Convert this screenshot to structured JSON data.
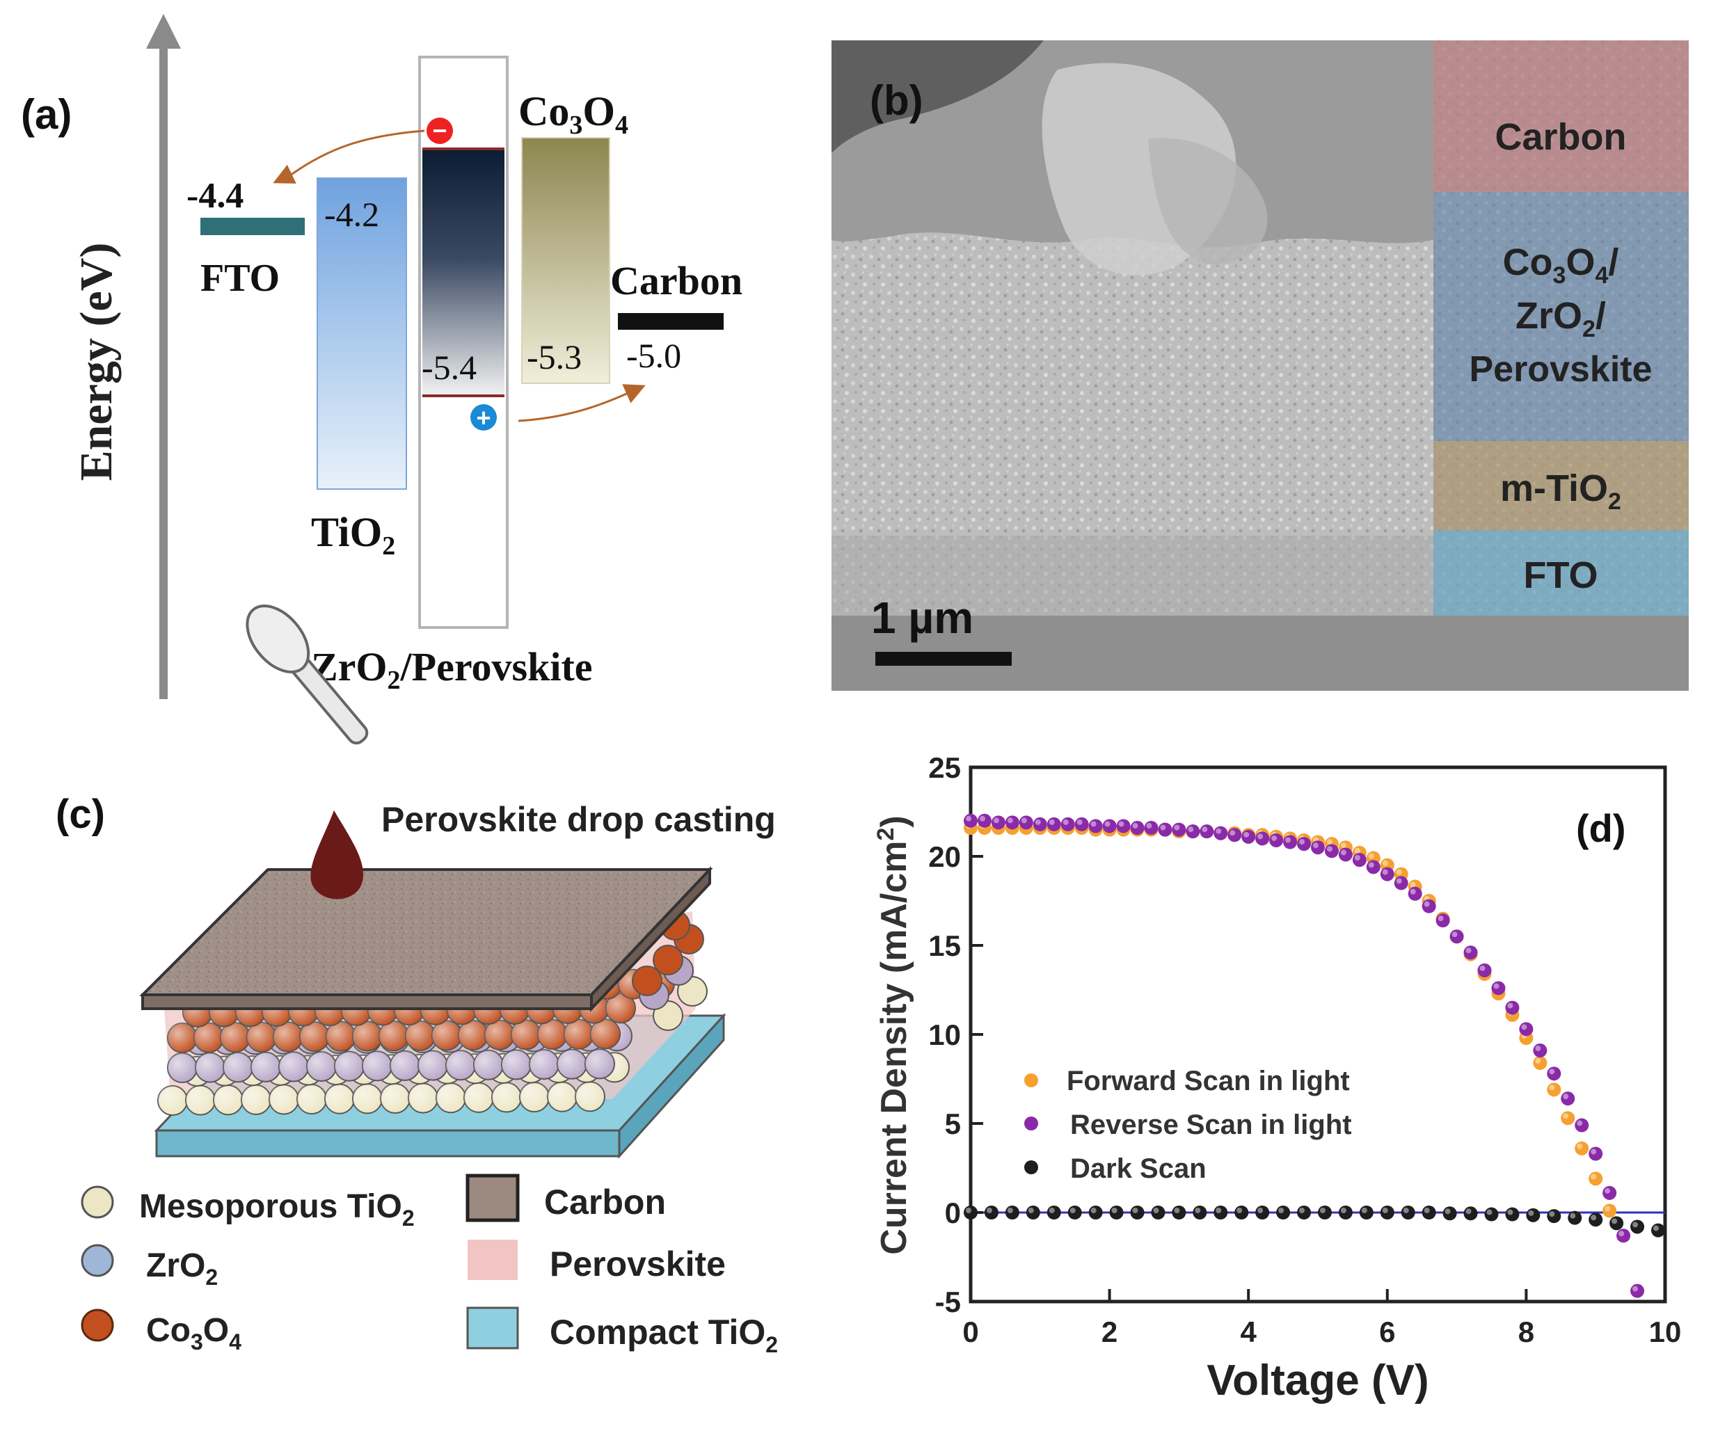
{
  "panel_a": {
    "label": "(a)",
    "axis_label": "Energy (eV)",
    "fto": {
      "name": "FTO",
      "level": "-4.4",
      "color": "#2e6f78"
    },
    "tio2": {
      "name": "TiO",
      "sub": "2",
      "level": "-4.2"
    },
    "zro2_perovskite": {
      "name_pre": "ZrO",
      "sub": "2",
      "name_post": "/Perovskite",
      "level": "-5.4"
    },
    "co3o4": {
      "name_pre": "Co",
      "sub1": "3",
      "mid": "O",
      "sub2": "4",
      "level": "-5.3"
    },
    "carbon": {
      "name": "Carbon",
      "level": "-5.0"
    },
    "electron_symbol": "−",
    "hole_symbol": "+"
  },
  "panel_b": {
    "label": "(b)",
    "scale_bar": "1 µm",
    "layers": [
      {
        "lines": [
          "Carbon"
        ],
        "color": "#b77c80"
      },
      {
        "lines": [
          "Co3O4/",
          "ZrO2/",
          "Perovskite"
        ],
        "color": "#5b7fa8"
      },
      {
        "lines": [
          "m-TiO2"
        ],
        "color": "#a8936a"
      },
      {
        "lines": [
          "FTO"
        ],
        "color": "#6aa5c0"
      }
    ],
    "layer_text": {
      "carbon": "Carbon",
      "co3o4_pre": "Co",
      "co3o4_sub1": "3",
      "co3o4_mid": "O",
      "co3o4_sub2": "4",
      "co3o4_post": "/",
      "zro2_pre": "ZrO",
      "zro2_sub": "2",
      "zro2_post": "/",
      "perovskite": "Perovskite",
      "mtio2_pre": "m-TiO",
      "mtio2_sub": "2",
      "fto": "FTO"
    }
  },
  "panel_c": {
    "label": "(c)",
    "drop_casting": "Perovskite drop casting",
    "legend": {
      "meso_pre": "Mesoporous TiO",
      "meso_sub": "2",
      "zro2_pre": "ZrO",
      "zro2_sub": "2",
      "co3o4_pre": "Co",
      "co3o4_sub1": "3",
      "co3o4_mid": "O",
      "co3o4_sub2": "4",
      "carbon": "Carbon",
      "perovskite": "Perovskite",
      "compact_pre": "Compact TiO",
      "compact_sub": "2"
    },
    "colors": {
      "meso_tio2": "#ede6c4",
      "zro2": "#b8a6c8",
      "co3o4": "#c2501f",
      "carbon": "#9c8a80",
      "perovskite": "#f2c5c5",
      "compact_tio2": "#8fd0e0"
    }
  },
  "panel_d": {
    "label": "(d)",
    "legend": [
      "Forward Scan in light",
      "Reverse Scan in light",
      "Dark Scan"
    ]
  },
  "chart_data": {
    "type": "scatter",
    "xlabel": "Voltage (V)",
    "ylabel_pre": "Current Density (mA/cm",
    "ylabel_sup": "2",
    "ylabel_post": ")",
    "xlim": [
      0,
      10
    ],
    "ylim": [
      -5,
      25
    ],
    "x_ticks": [
      0,
      2,
      4,
      6,
      8,
      10
    ],
    "y_ticks": [
      -5,
      0,
      5,
      10,
      15,
      20,
      25
    ],
    "zero_line_color": "#3030c0",
    "series": [
      {
        "name": "Forward Scan in light",
        "color": "#f5a030",
        "x": [
          0.0,
          0.2,
          0.4,
          0.6,
          0.8,
          1.0,
          1.2,
          1.4,
          1.6,
          1.8,
          2.0,
          2.2,
          2.4,
          2.6,
          2.8,
          3.0,
          3.2,
          3.4,
          3.6,
          3.8,
          4.0,
          4.2,
          4.4,
          4.6,
          4.8,
          5.0,
          5.2,
          5.4,
          5.6,
          5.8,
          6.0,
          6.2,
          6.4,
          6.6,
          6.8,
          7.0,
          7.2,
          7.4,
          7.6,
          7.8,
          8.0,
          8.2,
          8.4,
          8.6,
          8.8,
          9.0,
          9.2
        ],
        "y": [
          21.6,
          21.6,
          21.6,
          21.6,
          21.6,
          21.6,
          21.6,
          21.6,
          21.6,
          21.5,
          21.5,
          21.5,
          21.5,
          21.5,
          21.5,
          21.4,
          21.4,
          21.4,
          21.3,
          21.3,
          21.2,
          21.2,
          21.1,
          21.0,
          20.9,
          20.8,
          20.7,
          20.5,
          20.2,
          19.9,
          19.5,
          19.0,
          18.3,
          17.5,
          16.5,
          15.5,
          14.5,
          13.4,
          12.3,
          11.1,
          9.8,
          8.4,
          6.9,
          5.3,
          3.6,
          1.9,
          0.1
        ]
      },
      {
        "name": "Reverse Scan in light",
        "color": "#8a2aa8",
        "x": [
          0.0,
          0.2,
          0.4,
          0.6,
          0.8,
          1.0,
          1.2,
          1.4,
          1.6,
          1.8,
          2.0,
          2.2,
          2.4,
          2.6,
          2.8,
          3.0,
          3.2,
          3.4,
          3.6,
          3.8,
          4.0,
          4.2,
          4.4,
          4.6,
          4.8,
          5.0,
          5.2,
          5.4,
          5.6,
          5.8,
          6.0,
          6.2,
          6.4,
          6.6,
          6.8,
          7.0,
          7.2,
          7.4,
          7.6,
          7.8,
          8.0,
          8.2,
          8.4,
          8.6,
          8.8,
          9.0,
          9.2,
          9.4,
          9.6
        ],
        "y": [
          22.0,
          22.0,
          21.9,
          21.9,
          21.9,
          21.8,
          21.8,
          21.8,
          21.8,
          21.7,
          21.7,
          21.7,
          21.6,
          21.6,
          21.5,
          21.5,
          21.4,
          21.4,
          21.3,
          21.2,
          21.1,
          21.0,
          20.9,
          20.8,
          20.7,
          20.5,
          20.3,
          20.1,
          19.8,
          19.4,
          19.0,
          18.5,
          17.9,
          17.2,
          16.4,
          15.5,
          14.6,
          13.6,
          12.6,
          11.5,
          10.3,
          9.1,
          7.8,
          6.4,
          4.9,
          3.3,
          1.1,
          -1.3,
          -4.4
        ]
      },
      {
        "name": "Dark Scan",
        "color": "#1e1e1e",
        "x": [
          0.0,
          0.3,
          0.6,
          0.9,
          1.2,
          1.5,
          1.8,
          2.1,
          2.4,
          2.7,
          3.0,
          3.3,
          3.6,
          3.9,
          4.2,
          4.5,
          4.8,
          5.1,
          5.4,
          5.7,
          6.0,
          6.3,
          6.6,
          6.9,
          7.2,
          7.5,
          7.8,
          8.1,
          8.4,
          8.7,
          9.0,
          9.3,
          9.6,
          9.9
        ],
        "y": [
          0.0,
          0.0,
          0.0,
          0.0,
          0.0,
          0.0,
          0.0,
          0.0,
          0.0,
          0.0,
          0.0,
          0.0,
          0.0,
          0.0,
          0.0,
          0.0,
          0.0,
          0.0,
          0.0,
          0.0,
          0.0,
          0.0,
          0.0,
          -0.05,
          -0.05,
          -0.1,
          -0.1,
          -0.15,
          -0.2,
          -0.3,
          -0.4,
          -0.6,
          -0.8,
          -1.0
        ]
      }
    ]
  }
}
